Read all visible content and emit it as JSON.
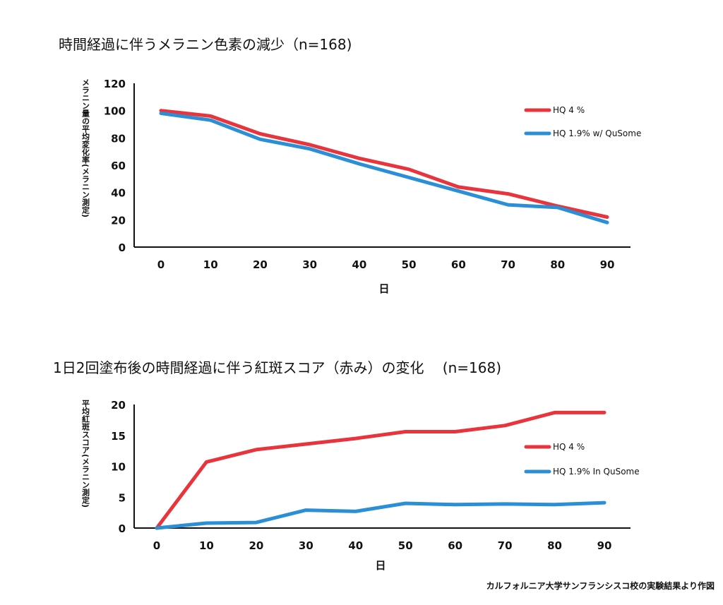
{
  "chart_data": [
    {
      "type": "line",
      "title": "時間経過に伴うメラニン色素の減少（n=168)",
      "xlabel": "日",
      "ylabel": "メラニン量の平均変化率(メラニン測定)",
      "x": [
        0,
        10,
        20,
        30,
        40,
        50,
        60,
        70,
        80,
        90
      ],
      "ylim": [
        0,
        120
      ],
      "yticks": [
        0,
        20,
        40,
        60,
        80,
        100,
        120
      ],
      "legend_position": "right",
      "series": [
        {
          "name": "HQ 4 %",
          "color": "#e8343c",
          "values": [
            100,
            96,
            83,
            75,
            65,
            57,
            44,
            39,
            30,
            22
          ]
        },
        {
          "name": "HQ 1.9% w/ QuSome",
          "color": "#2b8fd6",
          "values": [
            98,
            93,
            79,
            72,
            61,
            51,
            41,
            31,
            29,
            18
          ]
        }
      ]
    },
    {
      "type": "line",
      "title": "1日2回塗布後の時間経過に伴う紅斑スコア（赤み）の変化 　(n=168)",
      "xlabel": "日",
      "ylabel": "平均紅斑スコア(メラニン測定)",
      "x": [
        0,
        10,
        20,
        30,
        40,
        50,
        60,
        70,
        80,
        90
      ],
      "ylim": [
        0,
        20
      ],
      "yticks": [
        0,
        5,
        10,
        15,
        20
      ],
      "legend_position": "right",
      "series": [
        {
          "name": "HQ 4 %",
          "color": "#e8343c",
          "values": [
            0,
            10.7,
            12.7,
            13.6,
            14.5,
            15.6,
            15.6,
            16.6,
            18.7,
            18.7
          ]
        },
        {
          "name": "HQ 1.9% In QuSome",
          "color": "#2b8fd6",
          "values": [
            0,
            0.8,
            0.9,
            2.9,
            2.7,
            4.0,
            3.8,
            3.9,
            3.8,
            4.1
          ]
        }
      ]
    }
  ],
  "footnote": "カルフォルニア大学サンフランシスコ校の実験結果より作図"
}
